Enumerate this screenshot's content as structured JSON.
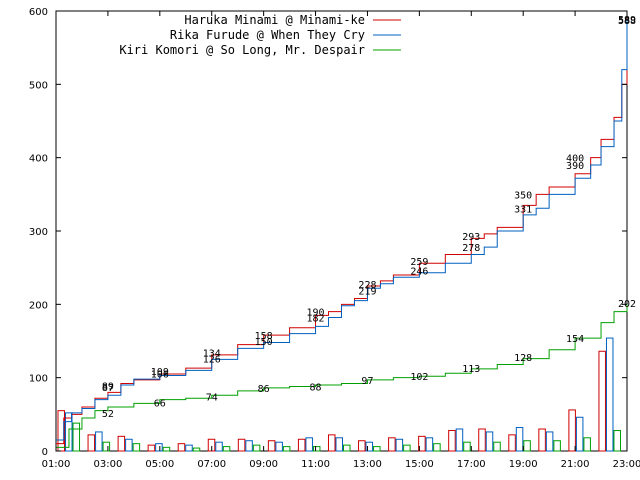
{
  "chart_data": {
    "type": "line",
    "xlim": [
      1,
      23
    ],
    "ylim": [
      0,
      600
    ],
    "y_ticks": [
      "0",
      "100",
      "200",
      "300",
      "400",
      "500",
      "600"
    ],
    "x_ticks": [
      "01:00",
      "03:00",
      "05:00",
      "07:00",
      "09:00",
      "11:00",
      "13:00",
      "15:00",
      "17:00",
      "19:00",
      "21:00",
      "23:00"
    ],
    "grid": false,
    "legend_position": "top-right",
    "series": [
      {
        "name": "Haruka Minami @ Minami-ke",
        "color": "#d00000",
        "points": [
          [
            1,
            10
          ],
          [
            1.3,
            45
          ],
          [
            1.6,
            50
          ],
          [
            2,
            60
          ],
          [
            2.5,
            72
          ],
          [
            3,
            80
          ],
          [
            3.5,
            92
          ],
          [
            4,
            97
          ],
          [
            5,
            105
          ],
          [
            6,
            113
          ],
          [
            7,
            131
          ],
          [
            8,
            145
          ],
          [
            9,
            158
          ],
          [
            10,
            168
          ],
          [
            11,
            185
          ],
          [
            11.5,
            190
          ],
          [
            12,
            200
          ],
          [
            12.5,
            208
          ],
          [
            13,
            225
          ],
          [
            13.5,
            232
          ],
          [
            14,
            240
          ],
          [
            15,
            256
          ],
          [
            16,
            268
          ],
          [
            17,
            290
          ],
          [
            17.5,
            296
          ],
          [
            18,
            305
          ],
          [
            19,
            335
          ],
          [
            19.5,
            350
          ],
          [
            20,
            360
          ],
          [
            21,
            378
          ],
          [
            21.6,
            400
          ],
          [
            22,
            425
          ],
          [
            22.5,
            455
          ],
          [
            22.8,
            500
          ],
          [
            23,
            590
          ]
        ],
        "labels": [
          {
            "x": 3,
            "y": 89,
            "text": "89"
          },
          {
            "x": 5,
            "y": 109,
            "text": "109"
          },
          {
            "x": 7,
            "y": 134,
            "text": "134"
          },
          {
            "x": 9,
            "y": 158,
            "text": "158"
          },
          {
            "x": 11,
            "y": 190,
            "text": "190"
          },
          {
            "x": 13,
            "y": 228,
            "text": "228"
          },
          {
            "x": 15,
            "y": 259,
            "text": "259"
          },
          {
            "x": 17,
            "y": 293,
            "text": "293"
          },
          {
            "x": 19,
            "y": 350,
            "text": "350"
          },
          {
            "x": 21,
            "y": 400,
            "text": "400"
          },
          {
            "x": 23,
            "y": 589,
            "text": "589"
          }
        ]
      },
      {
        "name": "Rika Furude @ When They Cry",
        "color": "#0060c0",
        "points": [
          [
            1,
            15
          ],
          [
            1.3,
            40
          ],
          [
            1.6,
            52
          ],
          [
            2,
            58
          ],
          [
            2.5,
            70
          ],
          [
            3,
            76
          ],
          [
            3.5,
            90
          ],
          [
            4,
            98
          ],
          [
            5,
            103
          ],
          [
            6,
            110
          ],
          [
            7,
            125
          ],
          [
            8,
            140
          ],
          [
            9,
            148
          ],
          [
            10,
            160
          ],
          [
            11,
            170
          ],
          [
            11.5,
            182
          ],
          [
            12,
            198
          ],
          [
            12.5,
            205
          ],
          [
            13,
            222
          ],
          [
            13.5,
            228
          ],
          [
            14,
            237
          ],
          [
            15,
            243
          ],
          [
            16,
            256
          ],
          [
            17,
            268
          ],
          [
            17.5,
            278
          ],
          [
            18,
            300
          ],
          [
            19,
            322
          ],
          [
            19.5,
            331
          ],
          [
            20,
            350
          ],
          [
            21,
            372
          ],
          [
            21.6,
            390
          ],
          [
            22,
            415
          ],
          [
            22.5,
            450
          ],
          [
            22.8,
            520
          ],
          [
            23,
            588
          ]
        ],
        "labels": [
          {
            "x": 3,
            "y": 87,
            "text": "87"
          },
          {
            "x": 5,
            "y": 106,
            "text": "106"
          },
          {
            "x": 7,
            "y": 126,
            "text": "126"
          },
          {
            "x": 9,
            "y": 150,
            "text": "150"
          },
          {
            "x": 11,
            "y": 182,
            "text": "182"
          },
          {
            "x": 13,
            "y": 219,
            "text": "219"
          },
          {
            "x": 15,
            "y": 246,
            "text": "246"
          },
          {
            "x": 17,
            "y": 278,
            "text": "278"
          },
          {
            "x": 19,
            "y": 331,
            "text": "331"
          },
          {
            "x": 21,
            "y": 390,
            "text": "390"
          },
          {
            "x": 23,
            "y": 588,
            "text": "588"
          }
        ]
      },
      {
        "name": "Kiri Komori @ So Long, Mr. Despair",
        "color": "#00a000",
        "points": [
          [
            1,
            5
          ],
          [
            1.5,
            30
          ],
          [
            2,
            45
          ],
          [
            2.5,
            55
          ],
          [
            3,
            60
          ],
          [
            4,
            65
          ],
          [
            5,
            70
          ],
          [
            6,
            72
          ],
          [
            7,
            76
          ],
          [
            8,
            82
          ],
          [
            9,
            86
          ],
          [
            10,
            88
          ],
          [
            11,
            90
          ],
          [
            12,
            92
          ],
          [
            13,
            97
          ],
          [
            14,
            100
          ],
          [
            15,
            102
          ],
          [
            16,
            106
          ],
          [
            17,
            112
          ],
          [
            18,
            118
          ],
          [
            19,
            126
          ],
          [
            20,
            138
          ],
          [
            21,
            154
          ],
          [
            22,
            175
          ],
          [
            22.5,
            190
          ],
          [
            23,
            202
          ]
        ],
        "labels": [
          {
            "x": 3,
            "y": 52,
            "text": "52"
          },
          {
            "x": 5,
            "y": 66,
            "text": "66"
          },
          {
            "x": 7,
            "y": 74,
            "text": "74"
          },
          {
            "x": 9,
            "y": 86,
            "text": "86"
          },
          {
            "x": 11,
            "y": 88,
            "text": "88"
          },
          {
            "x": 13,
            "y": 97,
            "text": "97"
          },
          {
            "x": 15,
            "y": 102,
            "text": "102"
          },
          {
            "x": 17,
            "y": 113,
            "text": "113"
          },
          {
            "x": 19,
            "y": 128,
            "text": "128"
          },
          {
            "x": 21,
            "y": 154,
            "text": "154"
          },
          {
            "x": 23,
            "y": 202,
            "text": "202"
          }
        ]
      }
    ],
    "bar_series": [
      {
        "name": "Haruka Minami @ Minami-ke",
        "color": "#d00000",
        "values": [
          55,
          22,
          20,
          8,
          10,
          16,
          16,
          14,
          16,
          22,
          14,
          18,
          20,
          28,
          30,
          22,
          30,
          56,
          136
        ]
      },
      {
        "name": "Rika Furude @ When They Cry",
        "color": "#0060c0",
        "values": [
          52,
          26,
          16,
          10,
          8,
          12,
          14,
          12,
          18,
          18,
          12,
          16,
          18,
          30,
          26,
          32,
          26,
          46,
          154
        ]
      },
      {
        "name": "Kiri Komori @ So Long, Mr. Despair",
        "color": "#00a000",
        "values": [
          38,
          12,
          10,
          5,
          4,
          6,
          8,
          6,
          6,
          8,
          6,
          8,
          10,
          12,
          12,
          14,
          14,
          18,
          28
        ]
      }
    ]
  }
}
